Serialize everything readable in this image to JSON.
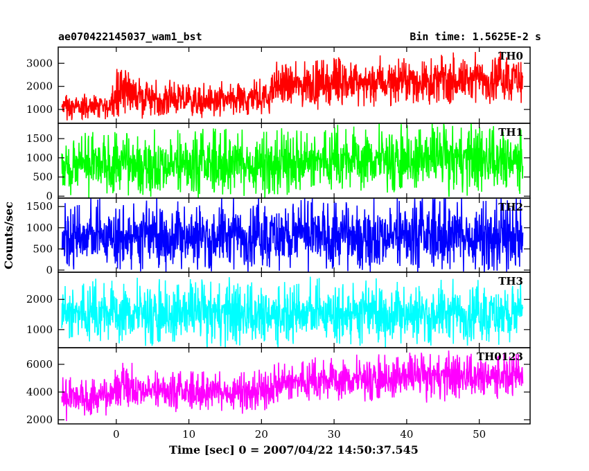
{
  "header": {
    "source_name": "ae070422145037_wam1_bst",
    "bin_time": "Bin time: 1.5625E-2 s"
  },
  "chart_data": {
    "type": "line",
    "xlabel": "Time [sec] 0 = 2007/04/22 14:50:37.545",
    "ylabel": "Counts/sec",
    "xlim": [
      -8,
      57
    ],
    "xticks": [
      0,
      10,
      20,
      30,
      40,
      50
    ],
    "grid": false,
    "panels": [
      {
        "name": "TH0",
        "color": "#ff0000",
        "ylim": [
          400,
          3700
        ],
        "yticks": [
          1000,
          2000,
          3000
        ],
        "x_range": [
          -7.5,
          56
        ],
        "envelope": [
          {
            "x": -7.5,
            "low": 600,
            "high": 1500
          },
          {
            "x": -1,
            "low": 700,
            "high": 1500
          },
          {
            "x": 0,
            "low": 900,
            "high": 2600
          },
          {
            "x": 1,
            "low": 1000,
            "high": 3000
          },
          {
            "x": 3,
            "low": 900,
            "high": 2200
          },
          {
            "x": 10,
            "low": 800,
            "high": 1900
          },
          {
            "x": 21,
            "low": 900,
            "high": 2100
          },
          {
            "x": 22,
            "low": 1200,
            "high": 2800
          },
          {
            "x": 30,
            "low": 1300,
            "high": 2900
          },
          {
            "x": 40,
            "low": 1400,
            "high": 3000
          },
          {
            "x": 56,
            "low": 1500,
            "high": 3200
          }
        ]
      },
      {
        "name": "TH1",
        "color": "#00ff00",
        "ylim": [
          -50,
          1900
        ],
        "yticks": [
          0,
          500,
          1000,
          1500
        ],
        "x_range": [
          -7.5,
          56
        ],
        "envelope": [
          {
            "x": -7.5,
            "low": 100,
            "high": 1300
          },
          {
            "x": 0,
            "low": 200,
            "high": 1500
          },
          {
            "x": 10,
            "low": 150,
            "high": 1450
          },
          {
            "x": 20,
            "low": 200,
            "high": 1500
          },
          {
            "x": 30,
            "low": 250,
            "high": 1550
          },
          {
            "x": 40,
            "low": 300,
            "high": 1600
          },
          {
            "x": 56,
            "low": 300,
            "high": 1650
          }
        ]
      },
      {
        "name": "TH2",
        "color": "#0000ff",
        "ylim": [
          -50,
          1700
        ],
        "yticks": [
          0,
          500,
          1000,
          1500
        ],
        "x_range": [
          -7.5,
          56
        ],
        "envelope": [
          {
            "x": -7.5,
            "low": 150,
            "high": 1400
          },
          {
            "x": 20,
            "low": 150,
            "high": 1450
          },
          {
            "x": 50,
            "low": 150,
            "high": 1450
          },
          {
            "x": 56,
            "low": 150,
            "high": 1500
          }
        ]
      },
      {
        "name": "TH3",
        "color": "#00ffff",
        "ylim": [
          400,
          2900
        ],
        "yticks": [
          1000,
          2000
        ],
        "x_range": [
          -7.5,
          56
        ],
        "envelope": [
          {
            "x": -7.5,
            "low": 700,
            "high": 2300
          },
          {
            "x": 30,
            "low": 700,
            "high": 2350
          },
          {
            "x": 56,
            "low": 700,
            "high": 2300
          }
        ]
      },
      {
        "name": "TH0123",
        "color": "#ff00ff",
        "ylim": [
          1700,
          7200
        ],
        "yticks": [
          2000,
          4000,
          6000
        ],
        "x_range": [
          -7.5,
          56
        ],
        "envelope": [
          {
            "x": -7.5,
            "low": 2400,
            "high": 4600
          },
          {
            "x": -1,
            "low": 2600,
            "high": 4700
          },
          {
            "x": 0,
            "low": 3200,
            "high": 5600
          },
          {
            "x": 1,
            "low": 3400,
            "high": 6200
          },
          {
            "x": 3,
            "low": 3100,
            "high": 5200
          },
          {
            "x": 10,
            "low": 2900,
            "high": 5000
          },
          {
            "x": 21,
            "low": 3000,
            "high": 5200
          },
          {
            "x": 22,
            "low": 3400,
            "high": 5800
          },
          {
            "x": 30,
            "low": 3600,
            "high": 6000
          },
          {
            "x": 40,
            "low": 3800,
            "high": 6300
          },
          {
            "x": 56,
            "low": 4000,
            "high": 6500
          }
        ]
      }
    ]
  }
}
